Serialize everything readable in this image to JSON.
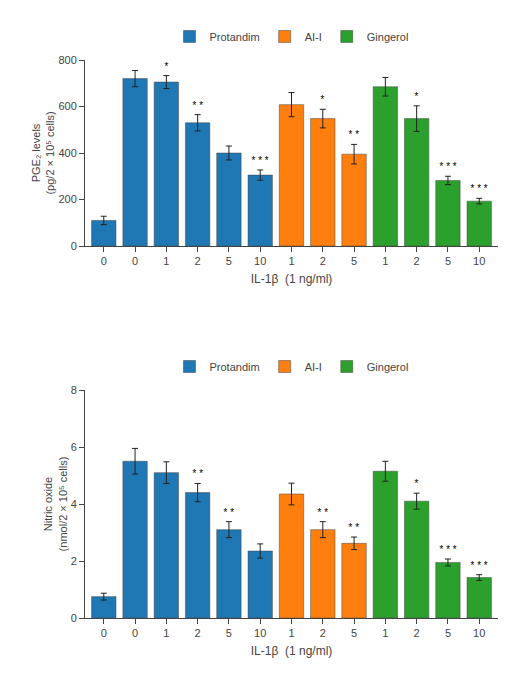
{
  "chart_data": [
    {
      "type": "bar",
      "xlabel": "IL-1β  (1 ng/ml)",
      "ylabel": "PGE₂ levels\n(pg/2 × 10⁵ cells)",
      "categories": [
        "0",
        "0",
        "1",
        "2",
        "5",
        "10",
        "1",
        "2",
        "5",
        "1",
        "2",
        "5",
        "10"
      ],
      "series": [
        {
          "name": "Protandim",
          "color": "#1f77b4",
          "values": [
            110,
            720,
            705,
            530,
            400,
            305,
            null,
            null,
            null,
            null,
            null,
            null,
            null
          ],
          "errors": [
            18,
            35,
            28,
            35,
            30,
            22,
            null,
            null,
            null,
            null,
            null,
            null,
            null
          ],
          "significance": [
            null,
            null,
            "*",
            "* *",
            null,
            "* * *",
            null,
            null,
            null,
            null,
            null,
            null,
            null
          ]
        },
        {
          "name": "AI-I",
          "color": "#ff7f0e",
          "values": [
            null,
            null,
            null,
            null,
            null,
            null,
            608,
            548,
            395,
            null,
            null,
            null,
            null
          ],
          "errors": [
            null,
            null,
            null,
            null,
            null,
            null,
            52,
            40,
            42,
            null,
            null,
            null,
            null
          ],
          "significance": [
            null,
            null,
            null,
            null,
            null,
            null,
            null,
            "*",
            "* *",
            null,
            null,
            null,
            null
          ]
        },
        {
          "name": "Gingerol",
          "color": "#2ca02c",
          "values": [
            null,
            null,
            null,
            null,
            null,
            null,
            null,
            null,
            null,
            685,
            548,
            282,
            193
          ],
          "errors": [
            null,
            null,
            null,
            null,
            null,
            null,
            null,
            null,
            null,
            40,
            55,
            18,
            12
          ],
          "significance": [
            null,
            null,
            null,
            null,
            null,
            null,
            null,
            null,
            null,
            null,
            "*",
            "* * *",
            "* * *"
          ]
        }
      ],
      "ylim": [
        0,
        800
      ],
      "yticks": [
        0,
        200,
        400,
        600,
        800
      ],
      "grid": false,
      "legend": "top"
    },
    {
      "type": "bar",
      "xlabel": "IL-1β  (1 ng/ml)",
      "ylabel": "Nitric oxide\n(nmol/2 × 10⁵ cells)",
      "categories": [
        "0",
        "0",
        "1",
        "2",
        "5",
        "10",
        "1",
        "2",
        "5",
        "1",
        "2",
        "5",
        "10"
      ],
      "series": [
        {
          "name": "Protandim",
          "color": "#1f77b4",
          "values": [
            0.75,
            5.5,
            5.1,
            4.4,
            3.1,
            2.35,
            null,
            null,
            null,
            null,
            null,
            null,
            null
          ],
          "errors": [
            0.12,
            0.45,
            0.38,
            0.32,
            0.28,
            0.25,
            null,
            null,
            null,
            null,
            null,
            null,
            null
          ],
          "significance": [
            null,
            null,
            null,
            "* *",
            "* *",
            null,
            null,
            null,
            null,
            null,
            null,
            null,
            null
          ]
        },
        {
          "name": "AI-I",
          "color": "#ff7f0e",
          "values": [
            null,
            null,
            null,
            null,
            null,
            null,
            4.35,
            3.1,
            2.62,
            null,
            null,
            null,
            null
          ],
          "errors": [
            null,
            null,
            null,
            null,
            null,
            null,
            0.38,
            0.28,
            0.22,
            null,
            null,
            null,
            null
          ],
          "significance": [
            null,
            null,
            null,
            null,
            null,
            null,
            null,
            "* *",
            "* *",
            null,
            null,
            null,
            null
          ]
        },
        {
          "name": "Gingerol",
          "color": "#2ca02c",
          "values": [
            null,
            null,
            null,
            null,
            null,
            null,
            null,
            null,
            null,
            5.15,
            4.1,
            1.95,
            1.42
          ],
          "errors": [
            null,
            null,
            null,
            null,
            null,
            null,
            null,
            null,
            null,
            0.35,
            0.28,
            0.12,
            0.1
          ],
          "significance": [
            null,
            null,
            null,
            null,
            null,
            null,
            null,
            null,
            null,
            null,
            "*",
            "* * *",
            "* * *"
          ]
        }
      ],
      "ylim": [
        0,
        8
      ],
      "yticks": [
        0,
        2,
        4,
        6,
        8
      ],
      "grid": false,
      "legend": "top"
    }
  ]
}
